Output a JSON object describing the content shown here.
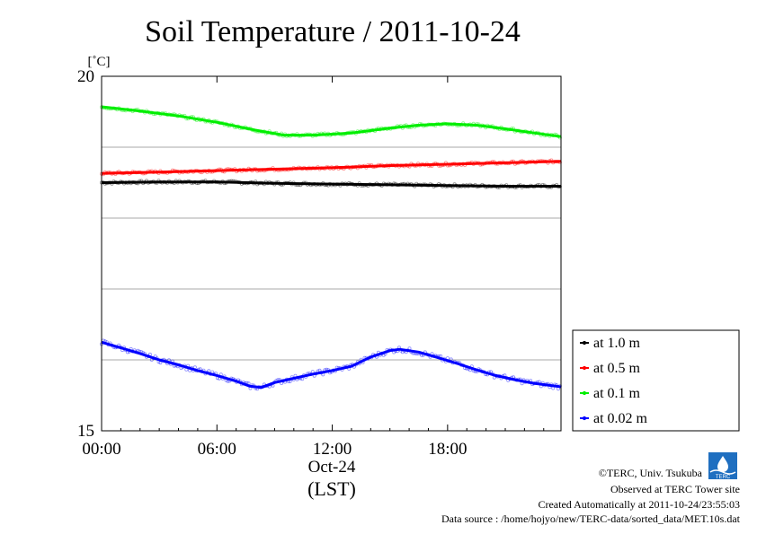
{
  "chart_data": {
    "type": "line",
    "title": "Soil Temperature / 2011-10-24",
    "ylabel": "[˚C]",
    "ylim": [
      15,
      20
    ],
    "xlim_hours": [
      0,
      23.9
    ],
    "y_tick_labels": [
      "15",
      "20"
    ],
    "y_gridlines": [
      16,
      17,
      18,
      19
    ],
    "x_ticks": [
      {
        "hour": 0,
        "label": "00:00"
      },
      {
        "hour": 6,
        "label": "06:00"
      },
      {
        "hour": 12,
        "label": "12:00"
      },
      {
        "hour": 18,
        "label": "18:00"
      }
    ],
    "x_date_label": "Oct-24",
    "x_unit_label": "(LST)",
    "grid": true,
    "legend_position": "right-bottom",
    "series": [
      {
        "name": "at 1.0 m",
        "color": "#000000",
        "points": [
          [
            0,
            18.5
          ],
          [
            3,
            18.51
          ],
          [
            6,
            18.51
          ],
          [
            9,
            18.49
          ],
          [
            12,
            18.48
          ],
          [
            15,
            18.47
          ],
          [
            18,
            18.46
          ],
          [
            21,
            18.45
          ],
          [
            23.9,
            18.45
          ]
        ]
      },
      {
        "name": "at 0.5 m",
        "color": "#ff0000",
        "points": [
          [
            0,
            18.63
          ],
          [
            3,
            18.65
          ],
          [
            6,
            18.67
          ],
          [
            9,
            18.69
          ],
          [
            12,
            18.71
          ],
          [
            15,
            18.74
          ],
          [
            18,
            18.76
          ],
          [
            21,
            18.78
          ],
          [
            23.9,
            18.8
          ]
        ]
      },
      {
        "name": "at 0.1 m",
        "color": "#00ee00",
        "points": [
          [
            0,
            19.57
          ],
          [
            2,
            19.51
          ],
          [
            4,
            19.44
          ],
          [
            6,
            19.35
          ],
          [
            8,
            19.24
          ],
          [
            9.5,
            19.17
          ],
          [
            11,
            19.17
          ],
          [
            13,
            19.2
          ],
          [
            15,
            19.27
          ],
          [
            16.5,
            19.31
          ],
          [
            18,
            19.33
          ],
          [
            19.5,
            19.31
          ],
          [
            21,
            19.26
          ],
          [
            22.5,
            19.2
          ],
          [
            23.9,
            19.15
          ]
        ]
      },
      {
        "name": "at 0.02 m",
        "color": "#0000ff",
        "points": [
          [
            0,
            16.25
          ],
          [
            1,
            16.17
          ],
          [
            2,
            16.09
          ],
          [
            3,
            16.0
          ],
          [
            4,
            15.93
          ],
          [
            5,
            15.85
          ],
          [
            6,
            15.78
          ],
          [
            7,
            15.7
          ],
          [
            7.7,
            15.63
          ],
          [
            8.3,
            15.61
          ],
          [
            9,
            15.68
          ],
          [
            10,
            15.74
          ],
          [
            11,
            15.8
          ],
          [
            12,
            15.85
          ],
          [
            13,
            15.91
          ],
          [
            14,
            16.04
          ],
          [
            15,
            16.13
          ],
          [
            15.5,
            16.15
          ],
          [
            16.5,
            16.11
          ],
          [
            17.5,
            16.03
          ],
          [
            18.5,
            15.95
          ],
          [
            19.5,
            15.86
          ],
          [
            20.5,
            15.78
          ],
          [
            21.5,
            15.72
          ],
          [
            22.5,
            15.67
          ],
          [
            23.9,
            15.62
          ]
        ]
      }
    ]
  },
  "credits": {
    "copyright": "©TERC, Univ. Tsukuba",
    "site": "Observed at TERC Tower site",
    "created": "Created Automatically at 2011-10-24/23:55:03",
    "source": "Data source : /home/hojyo/new/TERC-data/sorted_data/MET.10s.dat",
    "logo_text": "TERC"
  }
}
